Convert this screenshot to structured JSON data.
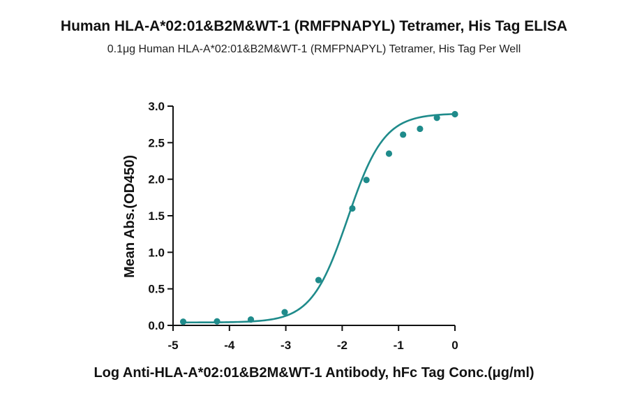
{
  "title": "Human HLA-A*02:01&B2M&WT-1 (RMFPNAPYL) Tetramer, His Tag ELISA",
  "subtitle": "0.1μg Human HLA-A*02:01&B2M&WT-1 (RMFPNAPYL) Tetramer, His Tag Per Well",
  "colors": {
    "series": "#1f8b8b",
    "axis": "#111111"
  },
  "chart_data": {
    "type": "scatter",
    "title": "Human HLA-A*02:01&B2M&WT-1 (RMFPNAPYL) Tetramer, His Tag ELISA",
    "subtitle": "0.1μg Human HLA-A*02:01&B2M&WT-1 (RMFPNAPYL) Tetramer, His Tag Per Well",
    "xlabel": "Log Anti-HLA-A*02:01&B2M&WT-1 Antibody, hFc Tag Conc.(μg/ml)",
    "ylabel": "Mean Abs.(OD450)",
    "xlim": [
      -5,
      0
    ],
    "ylim": [
      0,
      3.0
    ],
    "xticks": [
      -5,
      -4,
      -3,
      -2,
      -1,
      0
    ],
    "xtick_labels": [
      "-5",
      "-4",
      "-3",
      "-2",
      "-1",
      "0"
    ],
    "yticks": [
      0,
      0.5,
      1.0,
      1.5,
      2.0,
      2.5,
      3.0
    ],
    "ytick_labels": [
      "0.0",
      "0.5",
      "1.0",
      "1.5",
      "2.0",
      "2.5",
      "3.0"
    ],
    "grid": false,
    "series": [
      {
        "x": [
          -4.82,
          -4.22,
          -3.62,
          -3.02,
          -2.42,
          -1.82,
          -1.57,
          -1.17,
          -0.92,
          -0.62,
          -0.32,
          0.0
        ],
        "y": [
          0.05,
          0.055,
          0.08,
          0.18,
          0.62,
          1.6,
          1.99,
          2.35,
          2.61,
          2.69,
          2.84,
          2.89
        ],
        "fit": {
          "model": "4PL",
          "bottom": 0.04,
          "top": 2.9,
          "logEC50": -1.9,
          "hill": 1.35
        }
      }
    ]
  }
}
